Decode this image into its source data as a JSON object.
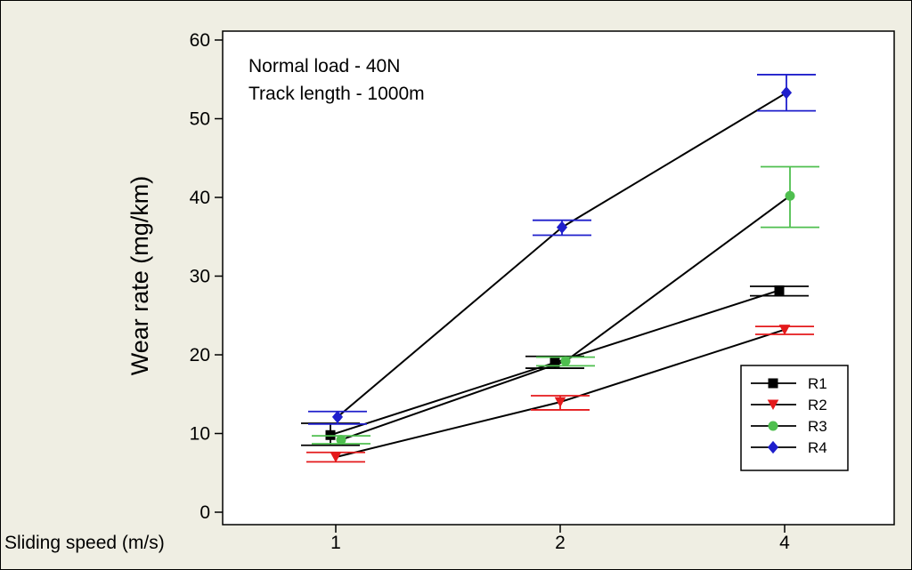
{
  "chart_data": {
    "type": "line",
    "title": "",
    "xlabel": "Sliding speed (m/s)",
    "ylabel": "Wear rate (mg/km)",
    "categories": [
      "1",
      "2",
      "4"
    ],
    "ylim": [
      0,
      60
    ],
    "yticks": [
      0,
      10,
      20,
      30,
      40,
      50,
      60
    ],
    "grid": false,
    "legend_position": "bottom-right",
    "annotations": [
      "Normal load - 40N",
      "Track length - 1000m"
    ],
    "series": [
      {
        "name": "R1",
        "color": "#000000",
        "marker": "square",
        "values": [
          9.8,
          19.0,
          28.2
        ],
        "err_low": [
          8.5,
          18.3,
          27.5
        ],
        "err_high": [
          11.3,
          19.8,
          28.7
        ]
      },
      {
        "name": "R2",
        "color": "#e41a1c",
        "marker": "triangle-down",
        "values": [
          7.0,
          14.0,
          23.2
        ],
        "err_low": [
          6.4,
          13.0,
          22.6
        ],
        "err_high": [
          7.6,
          14.8,
          23.6
        ]
      },
      {
        "name": "R3",
        "color": "#4fbf4f",
        "marker": "circle",
        "values": [
          9.2,
          19.2,
          40.2
        ],
        "err_low": [
          8.7,
          18.6,
          36.2
        ],
        "err_high": [
          9.7,
          19.7,
          43.9
        ]
      },
      {
        "name": "R4",
        "color": "#1f1fcc",
        "marker": "diamond",
        "values": [
          12.1,
          36.2,
          53.3
        ],
        "err_low": [
          11.2,
          35.2,
          51.0
        ],
        "err_high": [
          12.8,
          37.1,
          55.6
        ]
      }
    ]
  }
}
